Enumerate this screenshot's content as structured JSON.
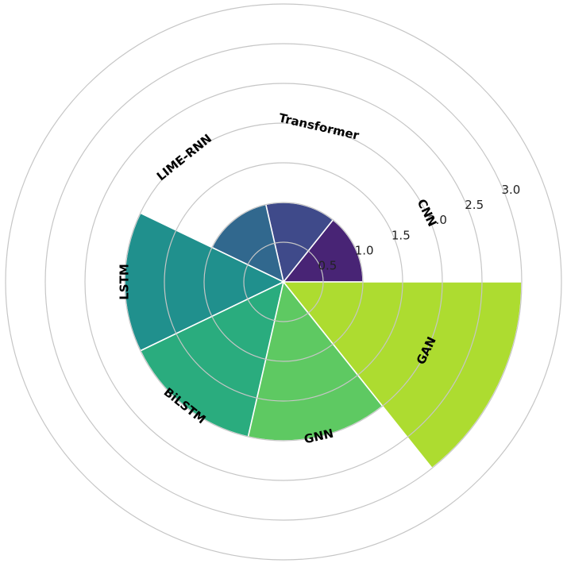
{
  "chart_data": {
    "type": "polar-bar",
    "title": "",
    "categories": [
      "CNN",
      "Transformer",
      "LIME-RNN",
      "LSTM",
      "BiLSTM",
      "GNN",
      "GAN"
    ],
    "values": [
      1.0,
      1.0,
      1.0,
      2.0,
      2.0,
      2.0,
      3.0
    ],
    "colors": [
      "#482475",
      "#3f4a8a",
      "#31688e",
      "#20908d",
      "#2aac7e",
      "#5ec962",
      "#addc30"
    ],
    "rlim": [
      0,
      3.5
    ],
    "radial_ticks": [
      0.5,
      1.0,
      1.5,
      2.0,
      2.5,
      3.0
    ],
    "radial_tick_labels": [
      "0.5",
      "1.0",
      "1.5",
      "2.0",
      "2.5",
      "3.0"
    ],
    "grid": true,
    "legend": "none"
  }
}
